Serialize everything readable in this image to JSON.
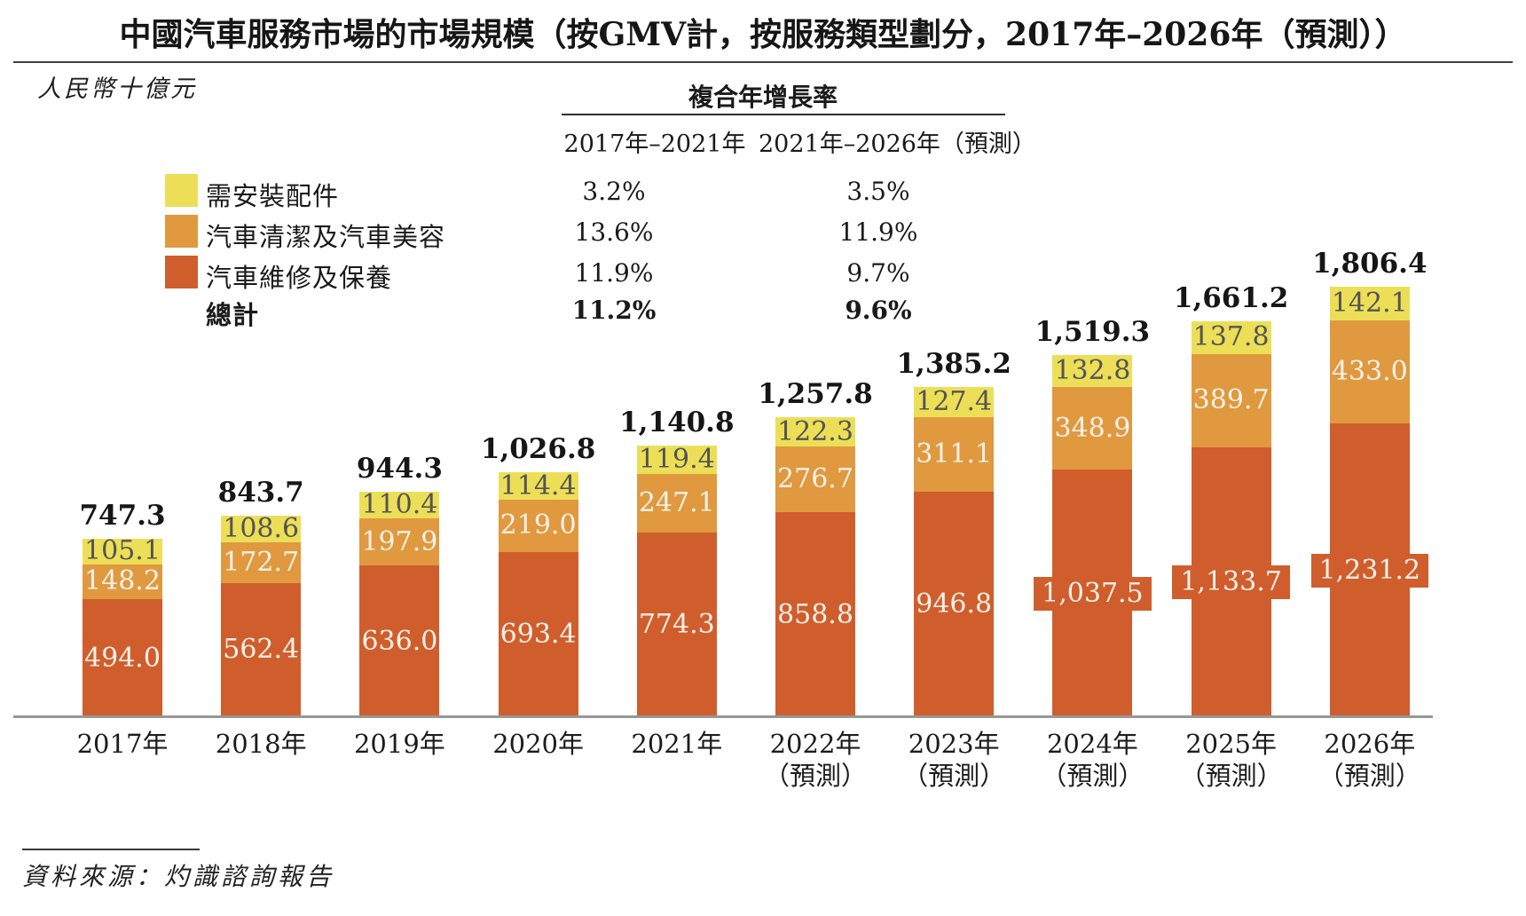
{
  "title": "中國汽車服務市場的市場規模（按GMV計，按服務類型劃分，2017年–2026年（預測））",
  "unit_label": "人民幣十億元",
  "source": "資料來源：灼識諮詢報告",
  "colors": {
    "parts_yellow": "#ecdf57",
    "clean_orange": "#e0993f",
    "repair_red": "#d05e2d",
    "axis_gray": "#979797",
    "label_dark": "#545454",
    "label_light": "#f8f1e9"
  },
  "cagr_table": {
    "header": "複合年增長率",
    "col1_header": "2017年–2021年",
    "col2_header": "2021年–2026年（預測）",
    "rows": [
      {
        "label": "需安裝配件",
        "swatch": "#ecdf57",
        "col1": "3.2%",
        "col2": "3.5%"
      },
      {
        "label": "汽車清潔及汽車美容",
        "swatch": "#e0993f",
        "col1": "13.6%",
        "col2": "11.9%"
      },
      {
        "label": "汽車維修及保養",
        "swatch": "#d05e2d",
        "col1": "11.9%",
        "col2": "9.7%"
      },
      {
        "label": "總計",
        "col1": "11.2%",
        "col2": "9.6%"
      }
    ]
  },
  "chart_data": {
    "type": "bar",
    "stacked": true,
    "title": "中國汽車服務市場的市場規模（按GMV計，按服務類型劃分，2017年–2026年（預測））",
    "ylabel": "人民幣十億元",
    "ylim": [
      0,
      1900
    ],
    "grid": false,
    "legend_position": "upper-left",
    "value_labels": "inside segments, totals above bars",
    "categories": [
      {
        "year": "2017年",
        "note": ""
      },
      {
        "year": "2018年",
        "note": ""
      },
      {
        "year": "2019年",
        "note": ""
      },
      {
        "year": "2020年",
        "note": ""
      },
      {
        "year": "2021年",
        "note": ""
      },
      {
        "year": "2022年",
        "note": "（預測）"
      },
      {
        "year": "2023年",
        "note": "（預測）"
      },
      {
        "year": "2024年",
        "note": "（預測）"
      },
      {
        "year": "2025年",
        "note": "（預測）"
      },
      {
        "year": "2026年",
        "note": "（預測）"
      }
    ],
    "series": [
      {
        "key": "repair",
        "name": "汽車維修及保養",
        "color": "#d05e2d",
        "label_color": "#f8f1e9",
        "values": [
          494.0,
          562.4,
          636.0,
          693.4,
          774.3,
          858.8,
          946.8,
          1037.5,
          1133.7,
          1231.2
        ],
        "labels": [
          "494.0",
          "562.4",
          "636.0",
          "693.4",
          "774.3",
          "858.8",
          "946.8",
          "1,037.5",
          "1,133.7",
          "1,231.2"
        ]
      },
      {
        "key": "clean",
        "name": "汽車清潔及汽車美容",
        "color": "#e0993f",
        "label_color": "#f8f1e9",
        "values": [
          148.2,
          172.7,
          197.9,
          219.0,
          247.1,
          276.7,
          311.1,
          348.9,
          389.7,
          433.0
        ],
        "labels": [
          "148.2",
          "172.7",
          "197.9",
          "219.0",
          "247.1",
          "276.7",
          "311.1",
          "348.9",
          "389.7",
          "433.0"
        ]
      },
      {
        "key": "parts",
        "name": "需安裝配件",
        "color": "#ecdf57",
        "label_color": "#545454",
        "values": [
          105.1,
          108.6,
          110.4,
          114.4,
          119.4,
          122.3,
          127.4,
          132.8,
          137.8,
          142.1
        ],
        "labels": [
          "105.1",
          "108.6",
          "110.4",
          "114.4",
          "119.4",
          "122.3",
          "127.4",
          "132.8",
          "137.8",
          "142.1"
        ]
      }
    ],
    "totals": [
      747.3,
      843.7,
      944.3,
      1026.8,
      1140.8,
      1257.8,
      1385.2,
      1519.3,
      1661.2,
      1806.4
    ],
    "total_labels": [
      "747.3",
      "843.7",
      "944.3",
      "1,026.8",
      "1,140.8",
      "1,257.8",
      "1,385.2",
      "1,519.3",
      "1,661.2",
      "1,806.4"
    ]
  }
}
